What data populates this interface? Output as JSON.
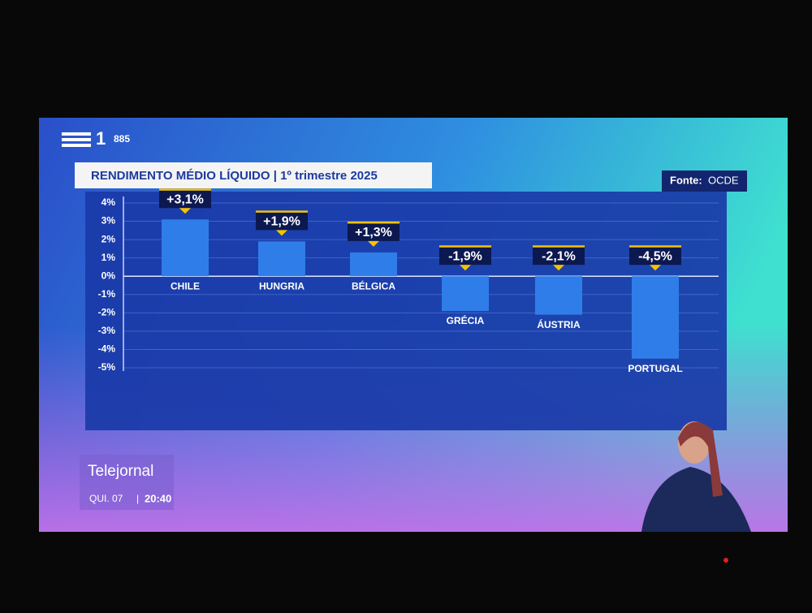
{
  "channel": {
    "number": "1",
    "code": "885"
  },
  "program": {
    "name": "Telejornal",
    "day": "QUI. 07",
    "time": "20:40"
  },
  "chart_data": {
    "type": "bar",
    "title": "RENDIMENTO MÉDIO LÍQUIDO | 1º trimestre 2025",
    "source_label": "Fonte:",
    "source": "OCDE",
    "categories": [
      "CHILE",
      "HUNGRIA",
      "BÉLGICA",
      "GRÉCIA",
      "ÁUSTRIA",
      "PORTUGAL"
    ],
    "values": [
      3.1,
      1.9,
      1.3,
      -1.9,
      -2.1,
      -4.5
    ],
    "value_labels": [
      "+3,1%",
      "+1,9%",
      "+1,3%",
      "-1,9%",
      "-2,1%",
      "-4,5%"
    ],
    "color": "#2f7de8",
    "ylim": [
      -5,
      4
    ],
    "yticks": [
      {
        "value": 4,
        "label": "4%"
      },
      {
        "value": 3,
        "label": "3%"
      },
      {
        "value": 2,
        "label": "2%"
      },
      {
        "value": 1,
        "label": "1%"
      },
      {
        "value": 0,
        "label": "0%"
      },
      {
        "value": -1,
        "label": "-1%"
      },
      {
        "value": -2,
        "label": "-2%"
      },
      {
        "value": -3,
        "label": "-3%"
      },
      {
        "value": -4,
        "label": "-4%"
      },
      {
        "value": -5,
        "label": "-5%"
      }
    ],
    "grid": true
  }
}
